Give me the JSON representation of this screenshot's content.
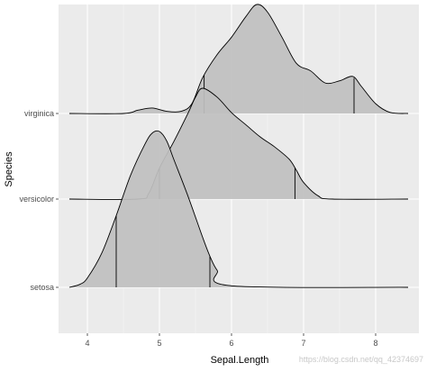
{
  "chart_data": {
    "type": "ridgeline",
    "xlabel": "Sepal.Length",
    "ylabel": "Species",
    "xlim": [
      3.6,
      8.6
    ],
    "x_ticks": [
      4,
      5,
      6,
      7,
      8
    ],
    "categories": [
      "setosa",
      "versicolor",
      "virginica"
    ],
    "grid": true,
    "quantile_lines": "first and third quartile marked by vertical lines",
    "series": [
      {
        "name": "setosa",
        "quantiles": [
          4.4,
          5.7
        ],
        "density_x": [
          3.75,
          3.9,
          4.0,
          4.2,
          4.4,
          4.6,
          4.8,
          4.9,
          5.0,
          5.1,
          5.2,
          5.4,
          5.6,
          5.7,
          5.8,
          6.0,
          8.45
        ],
        "density_y": [
          0.0,
          0.02,
          0.06,
          0.22,
          0.46,
          0.72,
          0.92,
          0.99,
          1.0,
          0.94,
          0.82,
          0.58,
          0.32,
          0.2,
          0.11,
          0.01,
          0.0
        ]
      },
      {
        "name": "versicolor",
        "quantiles": [
          5.0,
          6.88
        ],
        "density_x": [
          3.75,
          4.7,
          4.85,
          5.0,
          5.2,
          5.4,
          5.5,
          5.6,
          5.8,
          6.0,
          6.2,
          6.4,
          6.6,
          6.8,
          6.9,
          7.0,
          7.2,
          7.4,
          8.45
        ],
        "density_y": [
          0.0,
          0.0,
          0.05,
          0.28,
          0.52,
          0.78,
          0.92,
          1.0,
          0.92,
          0.78,
          0.67,
          0.56,
          0.47,
          0.36,
          0.26,
          0.15,
          0.03,
          0.0,
          0.0
        ]
      },
      {
        "name": "virginica",
        "quantiles": [
          5.62,
          7.7
        ],
        "density_x": [
          3.75,
          4.5,
          4.7,
          4.9,
          5.1,
          5.3,
          5.45,
          5.6,
          5.8,
          6.0,
          6.2,
          6.35,
          6.5,
          6.7,
          6.9,
          7.1,
          7.3,
          7.5,
          7.68,
          7.8,
          8.0,
          8.2,
          8.45
        ],
        "density_y": [
          0.0,
          0.0,
          0.03,
          0.05,
          0.02,
          0.02,
          0.09,
          0.33,
          0.54,
          0.7,
          0.89,
          1.0,
          0.93,
          0.7,
          0.46,
          0.39,
          0.28,
          0.3,
          0.34,
          0.25,
          0.09,
          0.01,
          0.0
        ]
      }
    ]
  },
  "watermark": "https://blog.csdn.net/qq_42374697",
  "colors": {
    "panel": "#ebebeb",
    "grid_major": "#ffffff",
    "grid_minor": "#f5f5f5",
    "fill": "#bfbfbf",
    "line": "#000000"
  }
}
